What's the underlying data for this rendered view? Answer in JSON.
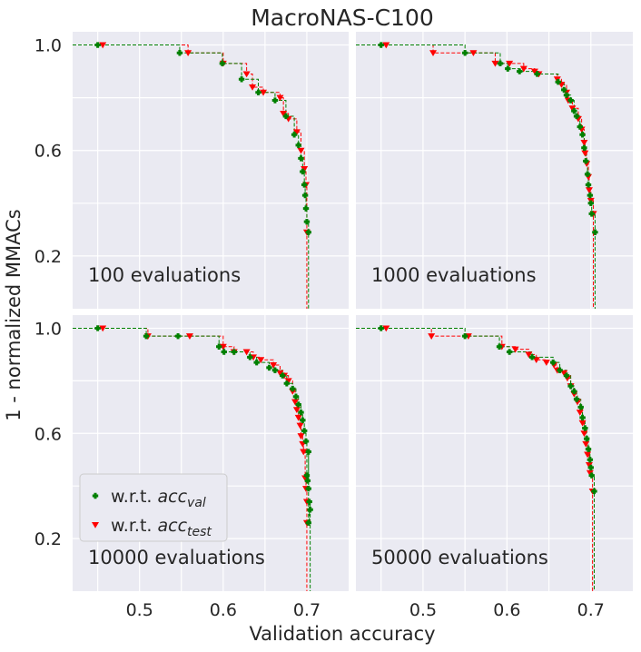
{
  "chart_data": {
    "type": "scatter",
    "title": "MacroNAS-C100",
    "xlabel": "Validation accuracy",
    "ylabel": "1 - normalized MMACs",
    "xlim": [
      0.42,
      0.75
    ],
    "ylim": [
      0.0,
      1.05
    ],
    "x_ticks": [
      0.5,
      0.6,
      0.7
    ],
    "x_tick_labels": [
      "0.5",
      "0.6",
      "0.7"
    ],
    "y_ticks": [
      0.2,
      0.6,
      1.0
    ],
    "y_tick_labels": [
      "0.2",
      "0.6",
      "1.0"
    ],
    "grid": true,
    "legend": {
      "placement": "lower-left of bottom-left panel",
      "entries": [
        {
          "marker": "plus",
          "color": "#008000",
          "label_plain": "w.r.t. ",
          "label_math": "acc",
          "label_sub": "val"
        },
        {
          "marker": "triangle-down",
          "color": "#ff0000",
          "label_plain": "w.r.t. ",
          "label_math": "acc",
          "label_sub": "test"
        }
      ]
    },
    "panels": [
      {
        "label": "100 evaluations",
        "series": [
          {
            "name": "val",
            "color": "#008000",
            "marker": "plus",
            "points": [
              [
                0.45,
                1.0
              ],
              [
                0.548,
                0.97
              ],
              [
                0.599,
                0.93
              ],
              [
                0.622,
                0.87
              ],
              [
                0.642,
                0.82
              ],
              [
                0.662,
                0.79
              ],
              [
                0.675,
                0.73
              ],
              [
                0.685,
                0.66
              ],
              [
                0.69,
                0.62
              ],
              [
                0.693,
                0.57
              ],
              [
                0.695,
                0.52
              ],
              [
                0.697,
                0.47
              ],
              [
                0.698,
                0.43
              ],
              [
                0.699,
                0.38
              ],
              [
                0.7,
                0.33
              ],
              [
                0.702,
                0.29
              ]
            ]
          },
          {
            "name": "test",
            "color": "#ff0000",
            "marker": "triangle",
            "points": [
              [
                0.456,
                1.0
              ],
              [
                0.558,
                0.97
              ],
              [
                0.6,
                0.93
              ],
              [
                0.628,
                0.89
              ],
              [
                0.635,
                0.84
              ],
              [
                0.648,
                0.82
              ],
              [
                0.668,
                0.8
              ],
              [
                0.672,
                0.74
              ],
              [
                0.678,
                0.72
              ],
              [
                0.688,
                0.67
              ],
              [
                0.693,
                0.6
              ],
              [
                0.697,
                0.53
              ],
              [
                0.699,
                0.47
              ],
              [
                0.7,
                0.29
              ]
            ]
          }
        ]
      },
      {
        "label": "1000 evaluations",
        "series": [
          {
            "name": "val",
            "color": "#008000",
            "marker": "plus",
            "points": [
              [
                0.45,
                1.0
              ],
              [
                0.55,
                0.97
              ],
              [
                0.592,
                0.93
              ],
              [
                0.601,
                0.91
              ],
              [
                0.615,
                0.9
              ],
              [
                0.636,
                0.89
              ],
              [
                0.661,
                0.86
              ],
              [
                0.668,
                0.83
              ],
              [
                0.671,
                0.81
              ],
              [
                0.676,
                0.79
              ],
              [
                0.68,
                0.75
              ],
              [
                0.683,
                0.73
              ],
              [
                0.687,
                0.69
              ],
              [
                0.69,
                0.66
              ],
              [
                0.692,
                0.61
              ],
              [
                0.694,
                0.56
              ],
              [
                0.696,
                0.51
              ],
              [
                0.697,
                0.47
              ],
              [
                0.699,
                0.43
              ],
              [
                0.7,
                0.4
              ],
              [
                0.701,
                0.36
              ],
              [
                0.705,
                0.29
              ]
            ]
          },
          {
            "name": "test",
            "color": "#ff0000",
            "marker": "triangle",
            "points": [
              [
                0.456,
                1.0
              ],
              [
                0.512,
                0.97
              ],
              [
                0.56,
                0.97
              ],
              [
                0.586,
                0.93
              ],
              [
                0.603,
                0.93
              ],
              [
                0.62,
                0.91
              ],
              [
                0.633,
                0.9
              ],
              [
                0.638,
                0.89
              ],
              [
                0.66,
                0.87
              ],
              [
                0.665,
                0.85
              ],
              [
                0.671,
                0.82
              ],
              [
                0.673,
                0.79
              ],
              [
                0.678,
                0.76
              ],
              [
                0.685,
                0.72
              ],
              [
                0.689,
                0.68
              ],
              [
                0.692,
                0.63
              ],
              [
                0.693,
                0.59
              ],
              [
                0.695,
                0.55
              ],
              [
                0.697,
                0.5
              ],
              [
                0.698,
                0.45
              ],
              [
                0.7,
                0.41
              ],
              [
                0.703,
                0.36
              ]
            ]
          }
        ]
      },
      {
        "label": "10000 evaluations",
        "series": [
          {
            "name": "val",
            "color": "#008000",
            "marker": "plus",
            "points": [
              [
                0.45,
                1.0
              ],
              [
                0.508,
                0.97
              ],
              [
                0.546,
                0.97
              ],
              [
                0.595,
                0.93
              ],
              [
                0.601,
                0.91
              ],
              [
                0.613,
                0.91
              ],
              [
                0.632,
                0.89
              ],
              [
                0.64,
                0.87
              ],
              [
                0.655,
                0.85
              ],
              [
                0.662,
                0.84
              ],
              [
                0.671,
                0.82
              ],
              [
                0.676,
                0.79
              ],
              [
                0.683,
                0.77
              ],
              [
                0.687,
                0.74
              ],
              [
                0.69,
                0.71
              ],
              [
                0.693,
                0.68
              ],
              [
                0.695,
                0.65
              ],
              [
                0.697,
                0.61
              ],
              [
                0.699,
                0.57
              ],
              [
                0.702,
                0.53
              ],
              [
                0.7,
                0.44
              ],
              [
                0.701,
                0.42
              ],
              [
                0.702,
                0.39
              ],
              [
                0.703,
                0.34
              ],
              [
                0.704,
                0.31
              ],
              [
                0.702,
                0.26
              ]
            ]
          },
          {
            "name": "test",
            "color": "#ff0000",
            "marker": "triangle",
            "points": [
              [
                0.456,
                1.0
              ],
              [
                0.51,
                0.97
              ],
              [
                0.56,
                0.97
              ],
              [
                0.6,
                0.93
              ],
              [
                0.613,
                0.91
              ],
              [
                0.628,
                0.91
              ],
              [
                0.636,
                0.89
              ],
              [
                0.645,
                0.88
              ],
              [
                0.66,
                0.86
              ],
              [
                0.668,
                0.83
              ],
              [
                0.673,
                0.82
              ],
              [
                0.678,
                0.8
              ],
              [
                0.683,
                0.76
              ],
              [
                0.686,
                0.72
              ],
              [
                0.688,
                0.69
              ],
              [
                0.69,
                0.66
              ],
              [
                0.692,
                0.63
              ],
              [
                0.693,
                0.59
              ],
              [
                0.695,
                0.56
              ],
              [
                0.696,
                0.53
              ],
              [
                0.698,
                0.43
              ],
              [
                0.699,
                0.39
              ],
              [
                0.7,
                0.34
              ],
              [
                0.7,
                0.26
              ]
            ]
          }
        ]
      },
      {
        "label": "50000 evaluations",
        "series": [
          {
            "name": "val",
            "color": "#008000",
            "marker": "plus",
            "points": [
              [
                0.45,
                1.0
              ],
              [
                0.55,
                0.97
              ],
              [
                0.591,
                0.93
              ],
              [
                0.603,
                0.91
              ],
              [
                0.63,
                0.89
              ],
              [
                0.655,
                0.87
              ],
              [
                0.663,
                0.84
              ],
              [
                0.671,
                0.82
              ],
              [
                0.676,
                0.78
              ],
              [
                0.68,
                0.76
              ],
              [
                0.683,
                0.73
              ],
              [
                0.688,
                0.7
              ],
              [
                0.69,
                0.66
              ],
              [
                0.693,
                0.62
              ],
              [
                0.695,
                0.58
              ],
              [
                0.697,
                0.54
              ],
              [
                0.699,
                0.5
              ],
              [
                0.7,
                0.47
              ],
              [
                0.701,
                0.44
              ],
              [
                0.704,
                0.38
              ]
            ]
          },
          {
            "name": "test",
            "color": "#ff0000",
            "marker": "triangle",
            "points": [
              [
                0.456,
                1.0
              ],
              [
                0.51,
                0.97
              ],
              [
                0.554,
                0.97
              ],
              [
                0.594,
                0.93
              ],
              [
                0.61,
                0.92
              ],
              [
                0.626,
                0.9
              ],
              [
                0.635,
                0.88
              ],
              [
                0.647,
                0.87
              ],
              [
                0.656,
                0.86
              ],
              [
                0.66,
                0.84
              ],
              [
                0.668,
                0.83
              ],
              [
                0.672,
                0.81
              ],
              [
                0.676,
                0.78
              ],
              [
                0.68,
                0.75
              ],
              [
                0.684,
                0.72
              ],
              [
                0.687,
                0.68
              ],
              [
                0.69,
                0.64
              ],
              [
                0.692,
                0.6
              ],
              [
                0.694,
                0.56
              ],
              [
                0.696,
                0.52
              ],
              [
                0.698,
                0.48
              ],
              [
                0.699,
                0.45
              ],
              [
                0.702,
                0.38
              ]
            ]
          }
        ]
      }
    ]
  }
}
